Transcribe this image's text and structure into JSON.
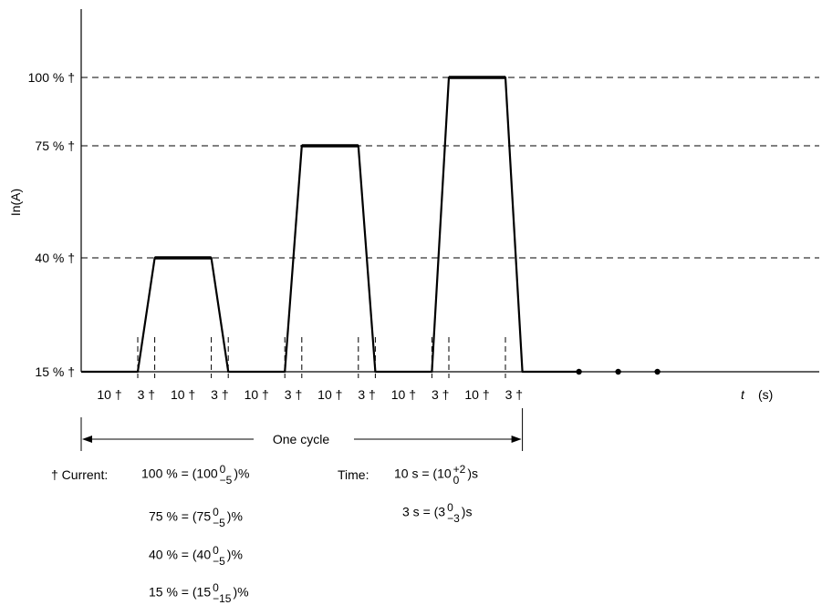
{
  "chart_data": {
    "type": "line",
    "title": "",
    "xlabel": "t",
    "xunit": "(s)",
    "ylabel": "In(A)",
    "y_levels": [
      "100 % †",
      "75 % †",
      "40 % †",
      "15 % †"
    ],
    "y_level_values": [
      100,
      75,
      40,
      15
    ],
    "grid": "dashed horizontal lines at 100 %, 75 %, 40 %",
    "series": [
      {
        "points": [
          [
            0,
            15
          ],
          [
            10,
            15
          ],
          [
            13,
            40
          ],
          [
            23,
            40
          ],
          [
            26,
            15
          ],
          [
            36,
            15
          ],
          [
            39,
            75
          ],
          [
            49,
            75
          ],
          [
            52,
            15
          ],
          [
            62,
            15
          ],
          [
            65,
            100
          ],
          [
            75,
            100
          ],
          [
            78,
            15
          ],
          [
            88,
            15
          ]
        ]
      }
    ],
    "continuation_dots": 3,
    "interval_labels": [
      "10 †",
      "3 †",
      "10 †",
      "3 †",
      "10 †",
      "3 †",
      "10 †",
      "3 †",
      "10 †",
      "3 †",
      "10 †",
      "3 †"
    ],
    "interval_durations": [
      10,
      3,
      10,
      3,
      10,
      3,
      10,
      3,
      10,
      3,
      10,
      3
    ],
    "cycle_label": "One cycle",
    "cycle_start": 0,
    "cycle_end": 78
  },
  "legend": {
    "current_label": "† Current:",
    "current_rows": [
      {
        "lhs": "100 % = (100",
        "upper": "0",
        "lower": "−5",
        "rhs": ")%"
      },
      {
        "lhs": "75 % = (75",
        "upper": "0",
        "lower": "−5",
        "rhs": ")%"
      },
      {
        "lhs": "40 % = (40",
        "upper": "0",
        "lower": "−5",
        "rhs": ")%"
      },
      {
        "lhs": "15 % = (15",
        "upper": "0",
        "lower": "−15",
        "rhs": ")%"
      }
    ],
    "time_label": "Time:",
    "time_rows": [
      {
        "lhs": "10 s = (10",
        "upper": "+2",
        "lower": "0",
        "rhs": ")s"
      },
      {
        "lhs": "3 s = (3",
        "upper": "0",
        "lower": "−3",
        "rhs": ")s"
      }
    ]
  }
}
